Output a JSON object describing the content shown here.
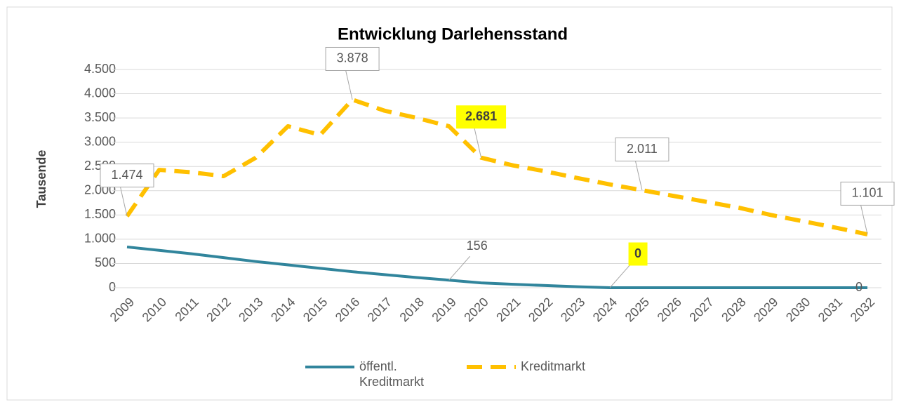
{
  "chart_data": {
    "type": "line",
    "title": "Entwicklung Darlehensstand",
    "y_label": "Tausende",
    "categories": [
      "2009",
      "2010",
      "2011",
      "2012",
      "2013",
      "2014",
      "2015",
      "2016",
      "2017",
      "2018",
      "2019",
      "2020",
      "2021",
      "2022",
      "2023",
      "2024",
      "2025",
      "2026",
      "2027",
      "2028",
      "2029",
      "2030",
      "2031",
      "2032"
    ],
    "series": [
      {
        "name": "öffentl. Kreditmarkt",
        "color": "#31859c",
        "dashed": false,
        "values": [
          840,
          770,
          700,
          620,
          540,
          470,
          400,
          330,
          270,
          210,
          156,
          100,
          70,
          45,
          20,
          0,
          0,
          0,
          0,
          0,
          0,
          0,
          0,
          0
        ],
        "value_labels": [
          null,
          null,
          null,
          null,
          null,
          null,
          null,
          null,
          null,
          null,
          "156",
          null,
          null,
          null,
          null,
          "0",
          null,
          null,
          null,
          null,
          null,
          null,
          null,
          "0"
        ],
        "highlighted_labels": [
          15
        ]
      },
      {
        "name": "Kreditmarkt",
        "color": "#ffc000",
        "dashed": true,
        "values": [
          1474,
          2430,
          2380,
          2300,
          2680,
          3330,
          3150,
          3878,
          3650,
          3500,
          3330,
          2681,
          2520,
          2400,
          2260,
          2130,
          2011,
          1890,
          1770,
          1650,
          1500,
          1370,
          1240,
          1101
        ],
        "value_labels": [
          "1.474",
          null,
          null,
          null,
          null,
          null,
          null,
          "3.878",
          null,
          null,
          null,
          "2.681",
          null,
          null,
          null,
          null,
          "2.011",
          null,
          null,
          null,
          null,
          null,
          null,
          "1.101"
        ],
        "highlighted_labels": [
          11
        ]
      }
    ],
    "ylim": [
      0,
      4500
    ],
    "yticks": [
      0,
      500,
      {
        "value": 1000,
        "label": "1.000"
      },
      {
        "value": 1500,
        "label": "1.500"
      },
      {
        "value": 2000,
        "label": "2.000"
      },
      {
        "value": 2500,
        "label": "2.500"
      },
      {
        "value": 3000,
        "label": "3.000"
      },
      {
        "value": 3500,
        "label": "3.500"
      },
      {
        "value": 4000,
        "label": "4.000"
      },
      {
        "value": 4500,
        "label": "4.500"
      }
    ],
    "grid": true,
    "legend": "bottom"
  }
}
